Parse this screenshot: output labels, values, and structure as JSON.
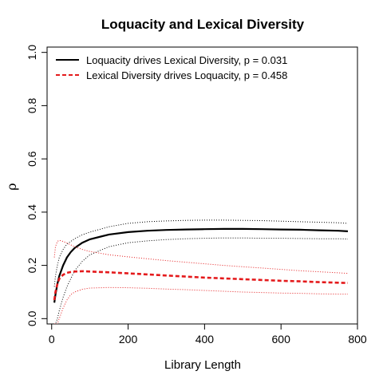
{
  "chart_data": {
    "type": "line",
    "title": "Loquacity and Lexical Diversity",
    "xlabel": "Library Length",
    "ylabel": "ρ",
    "xlim": [
      -12,
      800
    ],
    "ylim": [
      -0.02,
      1.02
    ],
    "xticks": [
      0,
      200,
      400,
      600,
      800
    ],
    "yticks": [
      0.0,
      0.2,
      0.4,
      0.6,
      0.8,
      1.0
    ],
    "xtick_labels": [
      "0",
      "200",
      "400",
      "600",
      "800"
    ],
    "ytick_labels": [
      "0.0",
      "0.2",
      "0.4",
      "0.6",
      "0.8",
      "1.0"
    ],
    "grid": false,
    "legend_position": "top-left",
    "series": [
      {
        "name": "Loquacity drives Lexical Diversity, p = 0.031",
        "color": "#000000",
        "style": "solid",
        "x": [
          7,
          10,
          15,
          20,
          30,
          40,
          50,
          60,
          80,
          100,
          150,
          200,
          250,
          300,
          350,
          400,
          450,
          500,
          550,
          600,
          650,
          700,
          750,
          775
        ],
        "y": [
          0.06,
          0.09,
          0.13,
          0.16,
          0.2,
          0.23,
          0.25,
          0.265,
          0.285,
          0.298,
          0.316,
          0.325,
          0.33,
          0.333,
          0.335,
          0.336,
          0.337,
          0.337,
          0.336,
          0.335,
          0.334,
          0.332,
          0.33,
          0.328
        ],
        "lower": [
          -0.05,
          -0.03,
          0.0,
          0.03,
          0.08,
          0.12,
          0.15,
          0.18,
          0.215,
          0.24,
          0.27,
          0.285,
          0.292,
          0.297,
          0.3,
          0.302,
          0.303,
          0.303,
          0.302,
          0.302,
          0.301,
          0.3,
          0.3,
          0.299
        ],
        "upper": [
          0.12,
          0.16,
          0.2,
          0.23,
          0.26,
          0.28,
          0.29,
          0.3,
          0.315,
          0.325,
          0.345,
          0.358,
          0.364,
          0.367,
          0.369,
          0.37,
          0.37,
          0.369,
          0.368,
          0.366,
          0.364,
          0.362,
          0.36,
          0.358
        ]
      },
      {
        "name": "Lexical Diversity drives Loquacity, p = 0.458",
        "color": "#e41a1c",
        "style": "dashed",
        "x": [
          7,
          10,
          15,
          20,
          30,
          40,
          50,
          60,
          80,
          100,
          150,
          200,
          250,
          300,
          350,
          400,
          450,
          500,
          550,
          600,
          650,
          700,
          750,
          775
        ],
        "y": [
          0.07,
          0.1,
          0.13,
          0.15,
          0.165,
          0.172,
          0.175,
          0.177,
          0.178,
          0.177,
          0.174,
          0.17,
          0.166,
          0.162,
          0.158,
          0.154,
          0.151,
          0.148,
          0.145,
          0.142,
          0.14,
          0.137,
          0.135,
          0.134
        ],
        "lower": [
          -0.12,
          -0.08,
          -0.04,
          0.0,
          0.04,
          0.07,
          0.09,
          0.1,
          0.11,
          0.115,
          0.117,
          0.116,
          0.114,
          0.111,
          0.109,
          0.106,
          0.103,
          0.1,
          0.098,
          0.096,
          0.095,
          0.093,
          0.092,
          0.092
        ],
        "upper": [
          0.23,
          0.27,
          0.29,
          0.294,
          0.29,
          0.284,
          0.277,
          0.27,
          0.26,
          0.252,
          0.24,
          0.232,
          0.225,
          0.218,
          0.212,
          0.206,
          0.2,
          0.195,
          0.19,
          0.185,
          0.18,
          0.176,
          0.172,
          0.17
        ]
      }
    ]
  }
}
